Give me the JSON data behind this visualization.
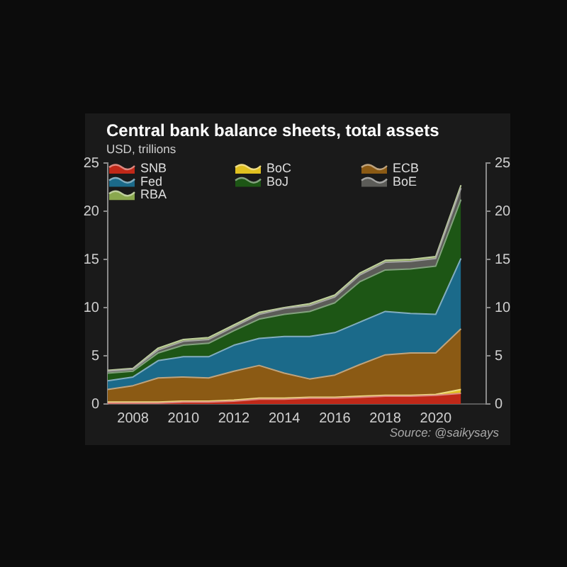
{
  "chart_data": {
    "type": "area",
    "title": "Central bank balance sheets, total assets",
    "subtitle": "USD, trillions",
    "annotations": [
      "Source: @saikysays"
    ],
    "x": [
      2007,
      2008,
      2009,
      2010,
      2011,
      2012,
      2013,
      2014,
      2015,
      2016,
      2017,
      2018,
      2019,
      2020,
      2021
    ],
    "xlim": [
      2007,
      2022
    ],
    "xticks": [
      2008,
      2010,
      2012,
      2014,
      2016,
      2018,
      2020
    ],
    "ylim": [
      0,
      25
    ],
    "yticks": [
      0,
      5,
      10,
      15,
      20,
      25
    ],
    "y2lim": [
      0,
      25
    ],
    "y2ticks": [
      0,
      5,
      10,
      15,
      20,
      25
    ],
    "stacked": true,
    "legend": "top left",
    "series": [
      {
        "name": "SNB",
        "color": "#c02818",
        "values": [
          0.1,
          0.1,
          0.1,
          0.2,
          0.2,
          0.3,
          0.5,
          0.5,
          0.6,
          0.6,
          0.7,
          0.8,
          0.8,
          0.9,
          1.1
        ]
      },
      {
        "name": "BoC",
        "color": "#e0c020",
        "values": [
          0.1,
          0.1,
          0.1,
          0.1,
          0.1,
          0.1,
          0.1,
          0.1,
          0.1,
          0.1,
          0.1,
          0.1,
          0.1,
          0.1,
          0.4
        ]
      },
      {
        "name": "ECB",
        "color": "#8b5a14",
        "values": [
          1.3,
          1.7,
          2.5,
          2.5,
          2.4,
          3.0,
          3.4,
          2.6,
          1.9,
          2.3,
          3.3,
          4.2,
          4.4,
          4.3,
          6.3
        ]
      },
      {
        "name": "Fed",
        "color": "#1b6a8a",
        "values": [
          0.9,
          0.9,
          1.8,
          2.1,
          2.2,
          2.7,
          2.8,
          3.8,
          4.4,
          4.4,
          4.4,
          4.5,
          4.1,
          4.0,
          7.3
        ]
      },
      {
        "name": "BoJ",
        "color": "#1d5615",
        "values": [
          0.8,
          0.6,
          0.8,
          1.2,
          1.4,
          1.5,
          2.0,
          2.3,
          2.6,
          3.1,
          4.2,
          4.3,
          4.6,
          5.0,
          6.1
        ]
      },
      {
        "name": "BoE",
        "color": "#5c5c58",
        "values": [
          0.2,
          0.2,
          0.3,
          0.4,
          0.4,
          0.4,
          0.5,
          0.6,
          0.6,
          0.6,
          0.7,
          0.8,
          0.8,
          0.8,
          1.2
        ]
      },
      {
        "name": "RBA",
        "color": "#8aa84e",
        "values": [
          0.1,
          0.1,
          0.2,
          0.2,
          0.2,
          0.2,
          0.2,
          0.1,
          0.2,
          0.2,
          0.2,
          0.2,
          0.2,
          0.2,
          0.3
        ]
      }
    ]
  }
}
